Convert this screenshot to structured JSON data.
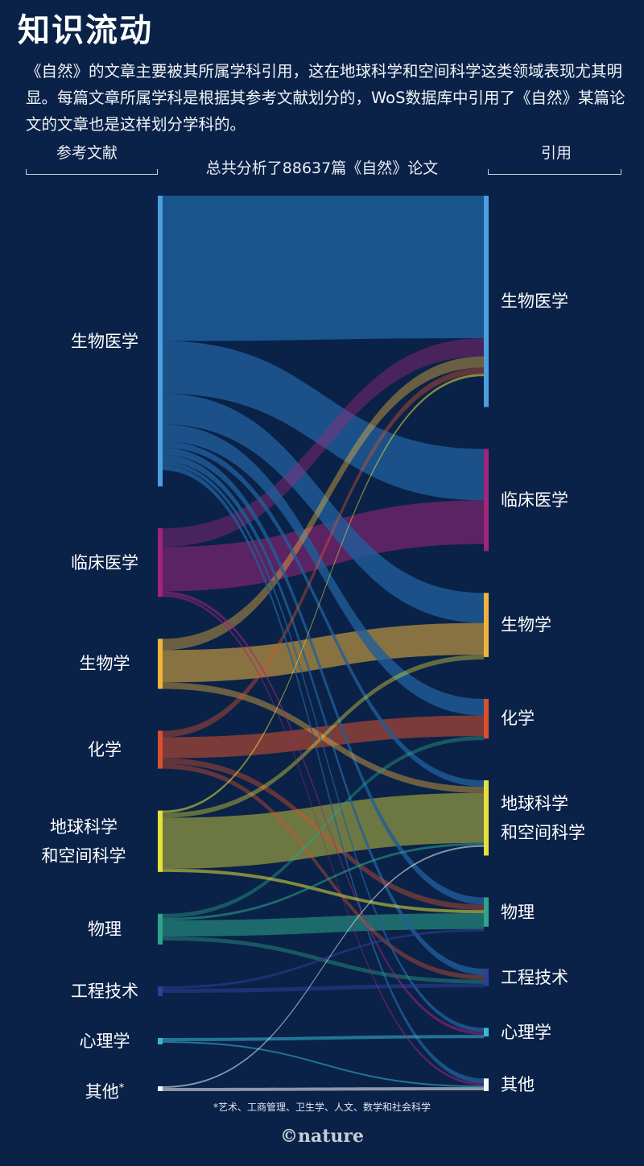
{
  "title": "知识流动",
  "description": "《自然》的文章主要被其所属学科引用，这在地球科学和空间科学这类领域表现尤其明显。每篇文章所属学科是根据其参考文献划分的，WoS数据库中引用了《自然》某篇论文的文章也是这样划分学科的。",
  "left_header": "参考文献",
  "right_header": "引用",
  "total_label": "总共分析了88637篇《自然》论文",
  "footnote": "*艺术、工商管理、卫生学、人文、数学和社会科学",
  "logo": "©nature",
  "chart_data": {
    "type": "sankey",
    "title": "知识流动",
    "total_papers": 88637,
    "left_axis_label": "参考文献",
    "right_axis_label": "引用",
    "categories": [
      {
        "key": "biomed",
        "label": [
          "生物医学"
        ],
        "color": "#4b9fdd"
      },
      {
        "key": "clinical",
        "label": [
          "临床医学"
        ],
        "color": "#a0257a"
      },
      {
        "key": "biology",
        "label": [
          "生物学"
        ],
        "color": "#f0b43c"
      },
      {
        "key": "chemistry",
        "label": [
          "化学"
        ],
        "color": "#d9502e"
      },
      {
        "key": "earth",
        "label": [
          "地球科学",
          "和空间科学"
        ],
        "color": "#e6e03a"
      },
      {
        "key": "physics",
        "label": [
          "物理"
        ],
        "color": "#2ea58a"
      },
      {
        "key": "engineering",
        "label": [
          "工程技术"
        ],
        "color": "#2f3e96"
      },
      {
        "key": "psychology",
        "label": [
          "心理学"
        ],
        "color": "#39b8d6"
      },
      {
        "key": "other",
        "label": [
          "其他",
          "*"
        ],
        "color": "#f4f6fa"
      }
    ],
    "left_values": [
      36,
      8.5,
      6.2,
      4.7,
      7.6,
      3.8,
      1.2,
      0.8,
      0.6
    ],
    "right_values": [
      26.7,
      12.9,
      8.1,
      5,
      9.5,
      3.7,
      2.2,
      1.1,
      1.6
    ],
    "flows": [
      [
        "biomed",
        "biomed",
        18
      ],
      [
        "biomed",
        "clinical",
        6.5
      ],
      [
        "biomed",
        "biology",
        3.8
      ],
      [
        "biomed",
        "chemistry",
        2.1
      ],
      [
        "biomed",
        "earth",
        0.8
      ],
      [
        "biomed",
        "physics",
        0.9
      ],
      [
        "biomed",
        "engineering",
        0.8
      ],
      [
        "biomed",
        "psychology",
        0.5
      ],
      [
        "biomed",
        "other",
        0.6
      ],
      [
        "clinical",
        "biomed",
        2.3
      ],
      [
        "clinical",
        "clinical",
        5.5
      ],
      [
        "clinical",
        "psychology",
        0.4
      ],
      [
        "clinical",
        "other",
        0.3
      ],
      [
        "biology",
        "biomed",
        1.4
      ],
      [
        "biology",
        "biology",
        4
      ],
      [
        "biology",
        "earth",
        0.8
      ],
      [
        "chemistry",
        "biomed",
        0.8
      ],
      [
        "chemistry",
        "chemistry",
        2.6
      ],
      [
        "chemistry",
        "physics",
        0.7
      ],
      [
        "chemistry",
        "engineering",
        0.6
      ],
      [
        "earth",
        "biomed",
        0.3
      ],
      [
        "earth",
        "biology",
        0.6
      ],
      [
        "earth",
        "earth",
        6.3
      ],
      [
        "earth",
        "physics",
        0.4
      ],
      [
        "physics",
        "chemistry",
        0.5
      ],
      [
        "physics",
        "earth",
        0.3
      ],
      [
        "physics",
        "physics",
        2
      ],
      [
        "physics",
        "engineering",
        0.5
      ],
      [
        "engineering",
        "physics",
        0.3
      ],
      [
        "engineering",
        "engineering",
        0.5
      ],
      [
        "psychology",
        "psychology",
        0.4
      ],
      [
        "psychology",
        "other",
        0.2
      ],
      [
        "other",
        "earth",
        0.2
      ],
      [
        "other",
        "other",
        0.4
      ]
    ]
  }
}
